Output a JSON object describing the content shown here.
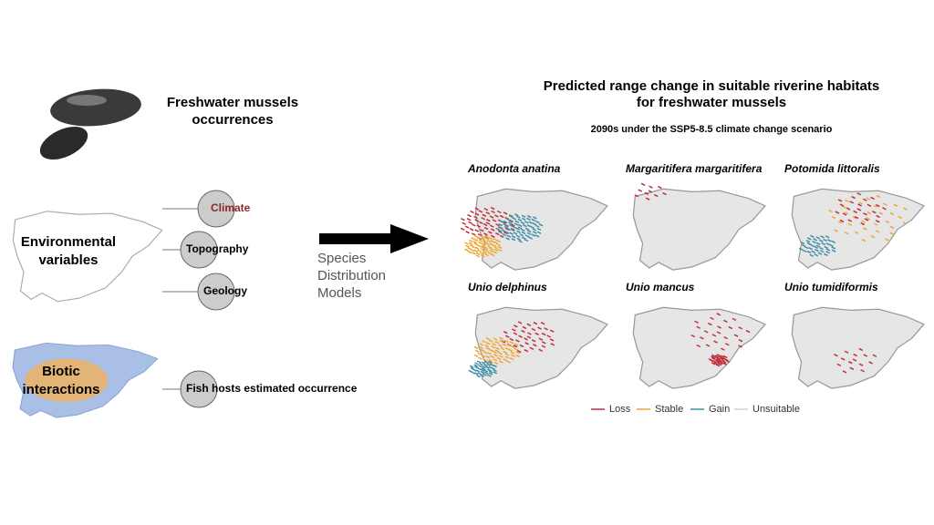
{
  "left": {
    "occurrences": {
      "lines": [
        "Freshwater mussels",
        "occurrences"
      ]
    },
    "environmental": {
      "lines": [
        "Environmental",
        "variables"
      ],
      "items": [
        "Climate",
        "Topography",
        "Geology"
      ]
    },
    "biotic": {
      "lines": [
        "Biotic",
        "interactions"
      ],
      "items": [
        "Fish hosts estimated occurrence"
      ]
    }
  },
  "model": {
    "lines": [
      "Species",
      "Distribution",
      "Models"
    ]
  },
  "right": {
    "title": [
      "Predicted range change in  suitable riverine habitats",
      "for freshwater mussels"
    ],
    "subtitle": "2090s under the SSP5-8.5 climate change scenario",
    "maps": [
      "Anodonta anatina",
      "Margaritifera margaritifera",
      "Potomida littoralis",
      "Unio delphinus",
      "Unio mancus",
      "Unio tumidiformis"
    ],
    "legend": [
      {
        "name": "Loss",
        "color": "#c0303a"
      },
      {
        "name": "Stable",
        "color": "#f2a531"
      },
      {
        "name": "Gain",
        "color": "#3f8fa8"
      },
      {
        "name": "Unsuitable",
        "color": "#d0d0d0"
      }
    ]
  }
}
